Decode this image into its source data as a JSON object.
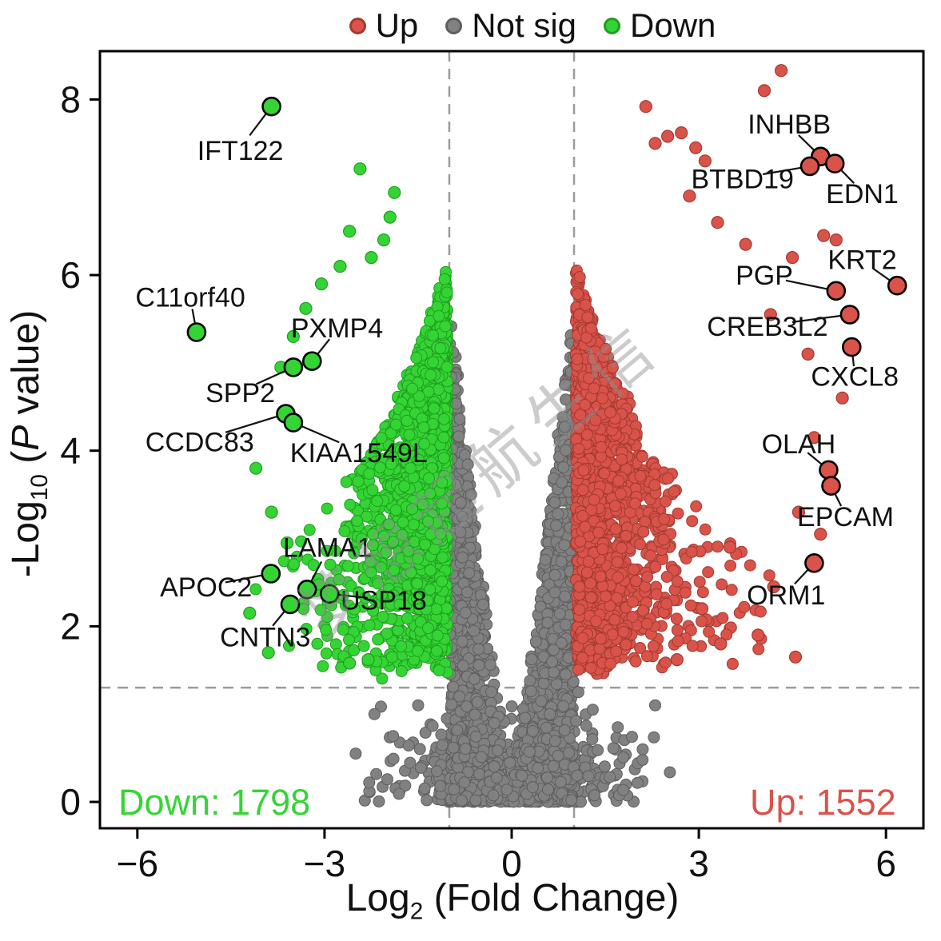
{
  "legend": {
    "items": [
      {
        "key": "up",
        "label": "Up"
      },
      {
        "key": "not_sig",
        "label": "Not sig"
      },
      {
        "key": "down",
        "label": "Down"
      }
    ]
  },
  "axes": {
    "x": {
      "label_main": "Log",
      "label_sub": "2",
      "label_rest": " (Fold Change)",
      "ticks": [
        -6,
        -3,
        0,
        3,
        6
      ],
      "lim": [
        -6.6,
        6.6
      ]
    },
    "y": {
      "label_prefix": "-Log",
      "label_sub": "10",
      "label_open": " (",
      "label_italic": "P",
      "label_close": " value)",
      "ticks": [
        0,
        2,
        4,
        6,
        8
      ],
      "lim": [
        -0.3,
        8.55
      ]
    }
  },
  "chart_data": {
    "type": "scatter",
    "subtype": "volcano",
    "xlabel": "Log2 (Fold Change)",
    "ylabel": "-Log10 (P value)",
    "xlim": [
      -6.6,
      6.6
    ],
    "ylim": [
      -0.3,
      8.55
    ],
    "thresholds": {
      "log2fc": [
        -1,
        1
      ],
      "neglog10p": 1.301
    },
    "counts": {
      "down": 1798,
      "up": 1552,
      "down_label": "Down: 1798",
      "up_label": "Up: 1552"
    },
    "series": {
      "up": {
        "name": "Up",
        "color": "#D9534A",
        "stroke": "#A23A30"
      },
      "not_sig": {
        "name": "Not sig",
        "color": "#818181",
        "stroke": "#5E5E5E"
      },
      "down": {
        "name": "Down",
        "color": "#35D435",
        "stroke": "#1F9E1F"
      }
    },
    "labeled_genes": {
      "down": [
        {
          "gene": "IFT122",
          "x": -3.85,
          "y": 7.92,
          "lx": -4.35,
          "ly": 7.42
        },
        {
          "gene": "C11orf40",
          "x": -5.05,
          "y": 5.35,
          "lx": -5.15,
          "ly": 5.75
        },
        {
          "gene": "PXMP4",
          "x": -3.2,
          "y": 5.02,
          "lx": -2.8,
          "ly": 5.4
        },
        {
          "gene": "SPP2",
          "x": -3.5,
          "y": 4.95,
          "lx": -4.35,
          "ly": 4.66
        },
        {
          "gene": "CCDC83",
          "x": -3.62,
          "y": 4.42,
          "lx": -5.0,
          "ly": 4.1
        },
        {
          "gene": "KIAA1549L",
          "x": -3.5,
          "y": 4.32,
          "lx": -2.45,
          "ly": 3.98
        },
        {
          "gene": "LAMA1",
          "x": -3.28,
          "y": 2.42,
          "lx": -2.95,
          "ly": 2.9
        },
        {
          "gene": "APOC2",
          "x": -3.86,
          "y": 2.6,
          "lx": -4.9,
          "ly": 2.45
        },
        {
          "gene": "USP18",
          "x": -2.92,
          "y": 2.37,
          "lx": -2.05,
          "ly": 2.3
        },
        {
          "gene": "CNTN3",
          "x": -3.55,
          "y": 2.25,
          "lx": -3.95,
          "ly": 1.88
        }
      ],
      "up": [
        {
          "gene": "INHBB",
          "x": 4.95,
          "y": 7.35,
          "lx": 4.45,
          "ly": 7.72
        },
        {
          "gene": "BTBD19",
          "x": 4.78,
          "y": 7.24,
          "lx": 3.7,
          "ly": 7.1
        },
        {
          "gene": "EDN1",
          "x": 5.18,
          "y": 7.27,
          "lx": 5.62,
          "ly": 6.93
        },
        {
          "gene": "KRT2",
          "x": 6.18,
          "y": 5.88,
          "lx": 5.62,
          "ly": 6.18
        },
        {
          "gene": "PGP",
          "x": 5.2,
          "y": 5.82,
          "lx": 4.05,
          "ly": 6.0
        },
        {
          "gene": "CREB3L2",
          "x": 5.42,
          "y": 5.55,
          "lx": 4.1,
          "ly": 5.42
        },
        {
          "gene": "CXCL8",
          "x": 5.45,
          "y": 5.18,
          "lx": 5.5,
          "ly": 4.85
        },
        {
          "gene": "OLAH",
          "x": 5.08,
          "y": 3.78,
          "lx": 4.6,
          "ly": 4.08
        },
        {
          "gene": "EPCAM",
          "x": 5.12,
          "y": 3.6,
          "lx": 5.35,
          "ly": 3.25
        },
        {
          "gene": "ORM1",
          "x": 4.85,
          "y": 2.72,
          "lx": 4.4,
          "ly": 2.36
        }
      ]
    },
    "scatter_accents": {
      "up": [
        [
          2.15,
          7.92
        ],
        [
          2.5,
          7.58
        ],
        [
          2.72,
          7.62
        ],
        [
          2.95,
          7.45
        ],
        [
          3.1,
          7.3
        ],
        [
          2.3,
          7.5
        ],
        [
          4.05,
          8.1
        ],
        [
          4.32,
          8.33
        ],
        [
          2.85,
          6.9
        ],
        [
          3.3,
          6.6
        ],
        [
          3.75,
          6.35
        ],
        [
          4.5,
          6.2
        ],
        [
          5.0,
          6.45
        ],
        [
          5.2,
          6.4
        ],
        [
          4.15,
          5.55
        ],
        [
          4.75,
          5.1
        ],
        [
          5.3,
          4.6
        ],
        [
          4.85,
          4.15
        ],
        [
          4.6,
          3.3
        ],
        [
          4.95,
          3.05
        ],
        [
          4.2,
          2.45
        ],
        [
          3.95,
          1.9
        ],
        [
          4.55,
          1.65
        ],
        [
          3.35,
          1.8
        ],
        [
          2.65,
          1.62
        ],
        [
          3.05,
          2.2
        ],
        [
          3.5,
          2.9
        ]
      ],
      "down": [
        [
          -2.43,
          7.21
        ],
        [
          -1.88,
          6.94
        ],
        [
          -1.95,
          6.66
        ],
        [
          -2.6,
          6.5
        ],
        [
          -2.25,
          6.2
        ],
        [
          -2.75,
          6.1
        ],
        [
          -3.05,
          5.9
        ],
        [
          -3.3,
          5.62
        ],
        [
          -3.5,
          5.3
        ],
        [
          -3.7,
          4.95
        ],
        [
          -2.05,
          6.4
        ],
        [
          -4.1,
          3.8
        ],
        [
          -3.85,
          3.3
        ],
        [
          -3.6,
          2.95
        ],
        [
          -4.2,
          2.15
        ],
        [
          -3.9,
          1.7
        ],
        [
          -2.6,
          1.58
        ],
        [
          -2.3,
          1.62
        ]
      ],
      "not_sig": [
        [
          1.3,
          1.05
        ],
        [
          1.7,
          0.85
        ],
        [
          2.1,
          0.6
        ],
        [
          2.3,
          1.1
        ],
        [
          -1.5,
          1.1
        ],
        [
          -1.9,
          0.75
        ],
        [
          -2.2,
          1.0
        ],
        [
          -2.5,
          0.55
        ],
        [
          1.05,
          0.3
        ],
        [
          -1.2,
          0.35
        ]
      ]
    },
    "clouds": {
      "seed": 11,
      "not_sig": {
        "n": 2400
      },
      "down": {
        "n": 1500
      },
      "up": {
        "n": 1500
      }
    },
    "watermark": "梦想起航生信"
  }
}
